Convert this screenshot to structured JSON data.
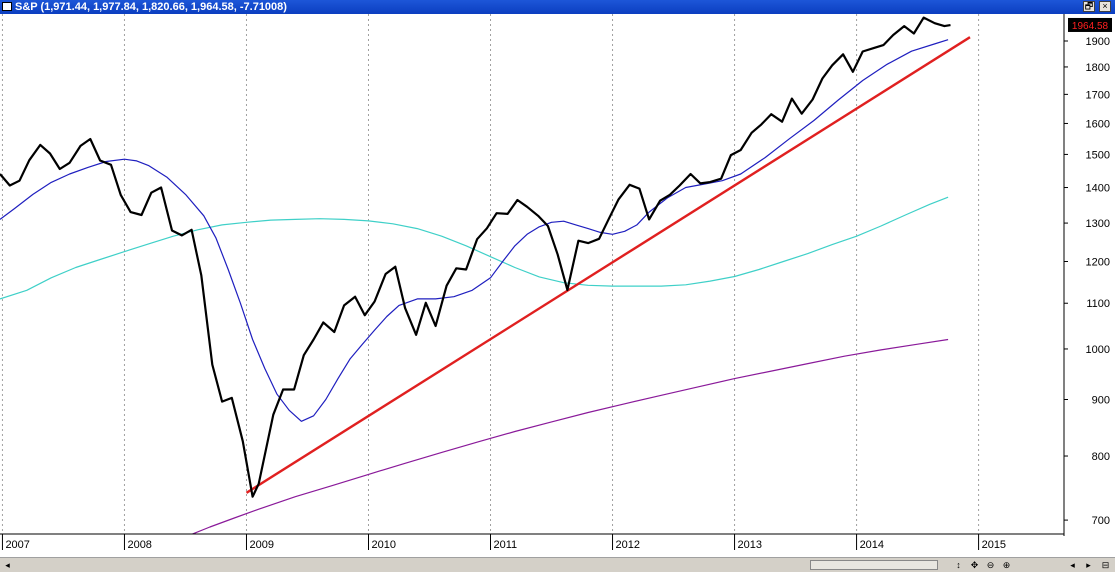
{
  "window": {
    "title": "S&P (1,971.44, 1,977.84, 1,820.66, 1,964.58, -7.71008)",
    "restore_glyph": "🗗",
    "close_glyph": "×"
  },
  "colors": {
    "price": "#000000",
    "ma_short": "#1f1fbf",
    "ma_medium": "#3fd0c8",
    "ma_long": "#8a1a9a",
    "trendline": "#e02020",
    "last_price_bg": "#000000",
    "last_price_fg": "#ff2020",
    "grid": "#a0a0a0"
  },
  "scrollbar": {
    "left_glyph": "◂",
    "buttons": [
      "↕",
      "✥",
      "⊖",
      "⊕",
      "◂",
      "▸",
      "⊟"
    ]
  },
  "chart_data": {
    "type": "line",
    "title": "S&P (1,971.44, 1,977.84, 1,820.66, 1,964.58, -7.71008)",
    "xlabel": "",
    "ylabel": "",
    "y_scale": "log",
    "grid": "vertical dotted lines at year starts",
    "last_price_label": "1964.58",
    "x_tick_labels": [
      "2007",
      "2008",
      "2009",
      "2010",
      "2011",
      "2012",
      "2013",
      "2014",
      "2015"
    ],
    "x_ticks": [
      2007.0,
      2008.0,
      2009.0,
      2010.0,
      2011.0,
      2012.0,
      2013.0,
      2014.0,
      2015.0
    ],
    "y_tick_labels": [
      "700",
      "800",
      "900",
      "1000",
      "1100",
      "1200",
      "1300",
      "1400",
      "1500",
      "1600",
      "1700",
      "1800",
      "1900"
    ],
    "y_ticks": [
      700,
      800,
      900,
      1000,
      1100,
      1200,
      1300,
      1400,
      1500,
      1600,
      1700,
      1800,
      1900
    ],
    "ylim": [
      680,
      2010
    ],
    "xlim": [
      2006.98,
      2015.7
    ],
    "series": [
      {
        "key": "price",
        "x": [
          2006.98,
          2007.06,
          2007.14,
          2007.22,
          2007.31,
          2007.39,
          2007.47,
          2007.55,
          2007.64,
          2007.72,
          2007.8,
          2007.89,
          2007.97,
          2008.05,
          2008.14,
          2008.22,
          2008.3,
          2008.39,
          2008.47,
          2008.55,
          2008.63,
          2008.72,
          2008.8,
          2008.88,
          2008.97,
          2009.05,
          2009.1,
          2009.22,
          2009.3,
          2009.39,
          2009.47,
          2009.55,
          2009.63,
          2009.72,
          2009.8,
          2009.89,
          2009.97,
          2010.05,
          2010.14,
          2010.22,
          2010.3,
          2010.39,
          2010.47,
          2010.55,
          2010.64,
          2010.72,
          2010.8,
          2010.89,
          2010.97,
          2011.05,
          2011.14,
          2011.22,
          2011.3,
          2011.39,
          2011.47,
          2011.55,
          2011.63,
          2011.72,
          2011.8,
          2011.89,
          2011.97,
          2012.05,
          2012.14,
          2012.22,
          2012.3,
          2012.39,
          2012.47,
          2012.55,
          2012.64,
          2012.72,
          2012.8,
          2012.89,
          2012.97,
          2013.05,
          2013.14,
          2013.22,
          2013.3,
          2013.39,
          2013.47,
          2013.55,
          2013.64,
          2013.72,
          2013.8,
          2013.89,
          2013.97,
          2014.05,
          2014.14,
          2014.22,
          2014.3,
          2014.39,
          2014.47,
          2014.55,
          2014.64,
          2014.72,
          2014.77
        ],
        "values": [
          1440,
          1406,
          1420,
          1482,
          1530,
          1503,
          1455,
          1474,
          1527,
          1549,
          1481,
          1468,
          1378,
          1330,
          1322,
          1385,
          1400,
          1280,
          1267,
          1282,
          1166,
          968,
          896,
          903,
          825,
          735,
          755,
          872,
          919,
          919,
          987,
          1020,
          1057,
          1036,
          1095,
          1115,
          1073,
          1104,
          1169,
          1187,
          1089,
          1030,
          1101,
          1049,
          1141,
          1183,
          1180,
          1257,
          1286,
          1327,
          1325,
          1364,
          1345,
          1320,
          1292,
          1218,
          1131,
          1253,
          1247,
          1258,
          1312,
          1366,
          1408,
          1397,
          1310,
          1362,
          1379,
          1406,
          1440,
          1412,
          1416,
          1426,
          1498,
          1514,
          1569,
          1597,
          1631,
          1606,
          1685,
          1633,
          1682,
          1757,
          1806,
          1848,
          1782,
          1859,
          1872,
          1884,
          1924,
          1960,
          1930,
          1995,
          1972,
          1960,
          1964
        ]
      },
      {
        "key": "ma_short",
        "x": [
          2006.98,
          2007.1,
          2007.25,
          2007.4,
          2007.55,
          2007.7,
          2007.85,
          2008.0,
          2008.1,
          2008.2,
          2008.35,
          2008.5,
          2008.65,
          2008.75,
          2008.85,
          2008.95,
          2009.05,
          2009.15,
          2009.25,
          2009.35,
          2009.45,
          2009.55,
          2009.65,
          2009.75,
          2009.85,
          2009.95,
          2010.05,
          2010.15,
          2010.25,
          2010.4,
          2010.55,
          2010.7,
          2010.85,
          2011.0,
          2011.1,
          2011.2,
          2011.3,
          2011.4,
          2011.5,
          2011.6,
          2011.7,
          2011.8,
          2011.9,
          2012.0,
          2012.1,
          2012.2,
          2012.3,
          2012.45,
          2012.6,
          2012.75,
          2012.9,
          2013.05,
          2013.25,
          2013.45,
          2013.65,
          2013.85,
          2014.05,
          2014.25,
          2014.45,
          2014.65,
          2014.75
        ],
        "values": [
          1310,
          1340,
          1380,
          1415,
          1440,
          1460,
          1478,
          1485,
          1480,
          1465,
          1430,
          1380,
          1320,
          1260,
          1180,
          1100,
          1020,
          960,
          910,
          880,
          860,
          870,
          900,
          940,
          980,
          1010,
          1040,
          1070,
          1095,
          1110,
          1110,
          1115,
          1130,
          1160,
          1200,
          1240,
          1270,
          1290,
          1302,
          1305,
          1295,
          1285,
          1275,
          1270,
          1278,
          1295,
          1330,
          1370,
          1400,
          1410,
          1420,
          1440,
          1490,
          1550,
          1610,
          1680,
          1750,
          1810,
          1860,
          1890,
          1905
        ]
      },
      {
        "key": "ma_medium",
        "x": [
          2006.98,
          2007.2,
          2007.4,
          2007.6,
          2007.8,
          2008.0,
          2008.2,
          2008.4,
          2008.6,
          2008.8,
          2009.0,
          2009.2,
          2009.4,
          2009.6,
          2009.8,
          2010.0,
          2010.2,
          2010.4,
          2010.6,
          2010.8,
          2011.0,
          2011.2,
          2011.4,
          2011.6,
          2011.8,
          2012.0,
          2012.2,
          2012.4,
          2012.6,
          2012.8,
          2013.0,
          2013.2,
          2013.4,
          2013.6,
          2013.8,
          2014.0,
          2014.2,
          2014.4,
          2014.6,
          2014.75
        ],
        "values": [
          1110,
          1130,
          1160,
          1185,
          1205,
          1225,
          1245,
          1265,
          1282,
          1295,
          1302,
          1308,
          1310,
          1312,
          1310,
          1306,
          1298,
          1285,
          1265,
          1240,
          1212,
          1185,
          1162,
          1148,
          1142,
          1140,
          1140,
          1140,
          1143,
          1152,
          1163,
          1180,
          1200,
          1220,
          1243,
          1265,
          1292,
          1322,
          1352,
          1372
        ]
      },
      {
        "key": "ma_long",
        "x": [
          2008.5,
          2008.7,
          2008.9,
          2009.1,
          2009.4,
          2009.7,
          2010.0,
          2010.3,
          2010.6,
          2010.9,
          2011.2,
          2011.5,
          2011.8,
          2012.1,
          2012.4,
          2012.7,
          2013.0,
          2013.3,
          2013.6,
          2013.9,
          2014.2,
          2014.5,
          2014.75
        ],
        "values": [
          676,
          690,
          703,
          716,
          735,
          752,
          770,
          788,
          806,
          824,
          842,
          859,
          876,
          892,
          908,
          924,
          940,
          955,
          970,
          985,
          998,
          1010,
          1020
        ]
      },
      {
        "key": "trendline",
        "x": [
          2009.0,
          2014.93
        ],
        "values": [
          741,
          1915
        ]
      }
    ]
  }
}
